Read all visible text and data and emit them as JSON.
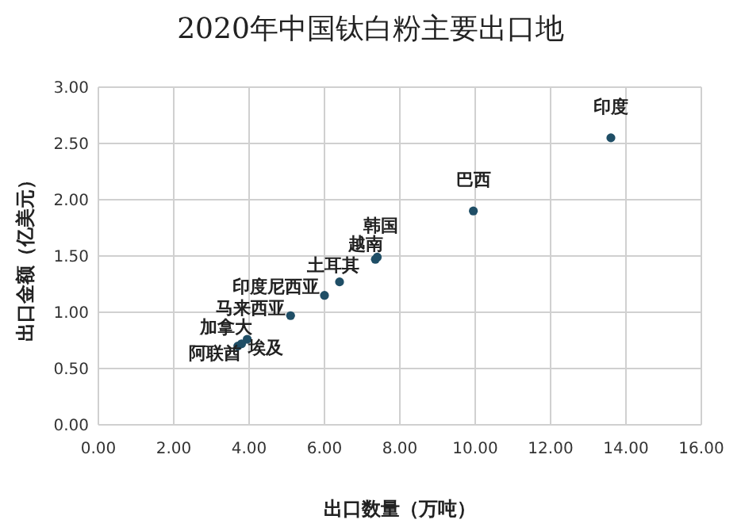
{
  "chart_data": {
    "type": "scatter",
    "title": "2020年中国钛白粉主要出口地",
    "xlabel": "出口数量（万吨）",
    "ylabel": "出口金额（亿美元）",
    "xlim": [
      0,
      16
    ],
    "xticks": [
      {
        "value": 0,
        "label": "0.00"
      },
      {
        "value": 2,
        "label": "2.00"
      },
      {
        "value": 4,
        "label": "4.00"
      },
      {
        "value": 6,
        "label": "6.00"
      },
      {
        "value": 8,
        "label": "8.00"
      },
      {
        "value": 10,
        "label": "10.00"
      },
      {
        "value": 12,
        "label": "12.00"
      },
      {
        "value": 14,
        "label": "14.00"
      },
      {
        "value": 16,
        "label": "16.00"
      }
    ],
    "ylim": [
      0,
      3
    ],
    "yticks": [
      {
        "value": 0,
        "label": "0.00"
      },
      {
        "value": 0.5,
        "label": "0.50"
      },
      {
        "value": 1,
        "label": "1.00"
      },
      {
        "value": 1.5,
        "label": "1.50"
      },
      {
        "value": 2,
        "label": "2.00"
      },
      {
        "value": 2.5,
        "label": "2.50"
      },
      {
        "value": 3,
        "label": "3.00"
      }
    ],
    "grid": true,
    "marker": "circle",
    "series": [
      {
        "name": "印度",
        "color": "#1f4e66",
        "x": [
          13.6
        ],
        "values": [
          2.55
        ]
      },
      {
        "name": "巴西",
        "color": "#1f4e66",
        "x": [
          9.95
        ],
        "values": [
          1.9
        ]
      },
      {
        "name": "韩国",
        "color": "#1f4e66",
        "x": [
          7.4
        ],
        "values": [
          1.49
        ]
      },
      {
        "name": "越南",
        "color": "#1f4e66",
        "x": [
          7.35
        ],
        "values": [
          1.47
        ]
      },
      {
        "name": "土耳其",
        "color": "#1f4e66",
        "x": [
          6.4
        ],
        "values": [
          1.27
        ]
      },
      {
        "name": "印度尼西亚",
        "color": "#1f4e66",
        "x": [
          6.0
        ],
        "values": [
          1.15
        ]
      },
      {
        "name": "马来西亚",
        "color": "#1f4e66",
        "x": [
          5.1
        ],
        "values": [
          0.97
        ]
      },
      {
        "name": "加拿大",
        "color": "#1f4e66",
        "x": [
          3.95
        ],
        "values": [
          0.76
        ]
      },
      {
        "name": "埃及",
        "color": "#1f4e66",
        "x": [
          3.8
        ],
        "values": [
          0.72
        ]
      },
      {
        "name": "阿联酋",
        "color": "#1f4e66",
        "x": [
          3.7
        ],
        "values": [
          0.7
        ]
      }
    ]
  }
}
